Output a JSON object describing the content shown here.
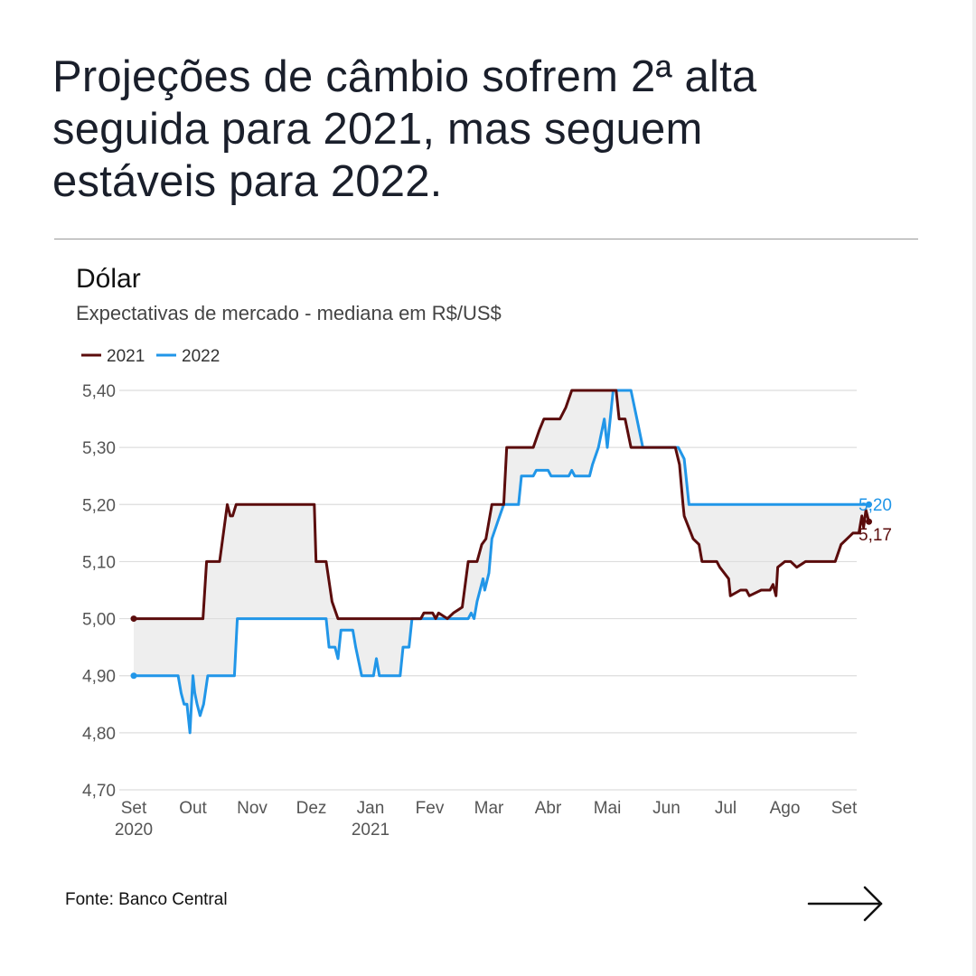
{
  "headline": {
    "line1": "Projeções de câmbio sofrem 2ª alta",
    "line2": "seguida para 2021, mas seguem",
    "line3": "estáveis para 2022."
  },
  "source": "Fonte: Banco Central",
  "nav": {
    "next_icon": "arrow-right-icon"
  },
  "colors": {
    "series_2021": "#5b0c0c",
    "series_2022": "#2196e8",
    "fill": "#eeeeee",
    "grid": "#dddddd",
    "axis_text": "#555555",
    "text": "#1a1f2b"
  },
  "chart_data": {
    "type": "line",
    "title": "Dólar",
    "subtitle": "Expectativas de mercado - mediana em R$/US$",
    "xlabel": "",
    "ylabel": "",
    "ylim": [
      4.7,
      5.4
    ],
    "xlim": [
      0,
      12
    ],
    "yticks": [
      {
        "value": 5.4,
        "label": "5,40"
      },
      {
        "value": 5.3,
        "label": "5,30"
      },
      {
        "value": 5.2,
        "label": "5,20"
      },
      {
        "value": 5.1,
        "label": "5,10"
      },
      {
        "value": 5.0,
        "label": "5,00"
      },
      {
        "value": 4.9,
        "label": "4,90"
      },
      {
        "value": 4.8,
        "label": "4,80"
      },
      {
        "value": 4.7,
        "label": "4,70"
      }
    ],
    "xticks": [
      {
        "pos": 0,
        "label": "Set",
        "sublabel": "2020"
      },
      {
        "pos": 1,
        "label": "Out",
        "sublabel": ""
      },
      {
        "pos": 2,
        "label": "Nov",
        "sublabel": ""
      },
      {
        "pos": 3,
        "label": "Dez",
        "sublabel": ""
      },
      {
        "pos": 4,
        "label": "Jan",
        "sublabel": "2021"
      },
      {
        "pos": 5,
        "label": "Fev",
        "sublabel": ""
      },
      {
        "pos": 6,
        "label": "Mar",
        "sublabel": ""
      },
      {
        "pos": 7,
        "label": "Abr",
        "sublabel": ""
      },
      {
        "pos": 8,
        "label": "Mai",
        "sublabel": ""
      },
      {
        "pos": 9,
        "label": "Jun",
        "sublabel": ""
      },
      {
        "pos": 10,
        "label": "Jul",
        "sublabel": ""
      },
      {
        "pos": 11,
        "label": "Ago",
        "sublabel": ""
      },
      {
        "pos": 12,
        "label": "Set",
        "sublabel": ""
      }
    ],
    "grid": true,
    "legend": "top-left",
    "shade_between_series": true,
    "series": [
      {
        "name": "2021",
        "color": "#5b0c0c",
        "end_label": "5,17",
        "points": [
          [
            0,
            5.0
          ],
          [
            1.17,
            5.0
          ],
          [
            1.23,
            5.1
          ],
          [
            1.45,
            5.1
          ],
          [
            1.58,
            5.2
          ],
          [
            1.63,
            5.18
          ],
          [
            1.67,
            5.18
          ],
          [
            1.73,
            5.2
          ],
          [
            3.05,
            5.2
          ],
          [
            3.08,
            5.1
          ],
          [
            3.25,
            5.1
          ],
          [
            3.35,
            5.03
          ],
          [
            3.45,
            5.0
          ],
          [
            4.85,
            5.0
          ],
          [
            4.9,
            5.01
          ],
          [
            5.05,
            5.01
          ],
          [
            5.1,
            5.0
          ],
          [
            5.15,
            5.01
          ],
          [
            5.3,
            5.0
          ],
          [
            5.4,
            5.01
          ],
          [
            5.55,
            5.02
          ],
          [
            5.65,
            5.1
          ],
          [
            5.8,
            5.1
          ],
          [
            5.88,
            5.13
          ],
          [
            5.95,
            5.14
          ],
          [
            6.05,
            5.2
          ],
          [
            6.25,
            5.2
          ],
          [
            6.3,
            5.3
          ],
          [
            6.75,
            5.3
          ],
          [
            6.85,
            5.33
          ],
          [
            6.93,
            5.35
          ],
          [
            7.2,
            5.35
          ],
          [
            7.3,
            5.37
          ],
          [
            7.4,
            5.4
          ],
          [
            8.15,
            5.4
          ],
          [
            8.2,
            5.35
          ],
          [
            8.3,
            5.35
          ],
          [
            8.4,
            5.3
          ],
          [
            9.15,
            5.3
          ],
          [
            9.22,
            5.27
          ],
          [
            9.28,
            5.2
          ],
          [
            9.3,
            5.18
          ],
          [
            9.45,
            5.14
          ],
          [
            9.55,
            5.13
          ],
          [
            9.6,
            5.1
          ],
          [
            9.85,
            5.1
          ],
          [
            9.9,
            5.09
          ],
          [
            10.05,
            5.07
          ],
          [
            10.08,
            5.04
          ],
          [
            10.25,
            5.05
          ],
          [
            10.35,
            5.05
          ],
          [
            10.4,
            5.04
          ],
          [
            10.6,
            5.05
          ],
          [
            10.75,
            5.05
          ],
          [
            10.8,
            5.06
          ],
          [
            10.85,
            5.04
          ],
          [
            10.88,
            5.09
          ],
          [
            11.0,
            5.1
          ],
          [
            11.1,
            5.1
          ],
          [
            11.2,
            5.09
          ],
          [
            11.35,
            5.1
          ],
          [
            11.85,
            5.1
          ],
          [
            11.95,
            5.13
          ],
          [
            12.05,
            5.14
          ],
          [
            12.15,
            5.15
          ],
          [
            12.25,
            5.15
          ],
          [
            12.3,
            5.18
          ],
          [
            12.33,
            5.16
          ],
          [
            12.37,
            5.19
          ],
          [
            12.42,
            5.17
          ]
        ]
      },
      {
        "name": "2022",
        "color": "#2196e8",
        "end_label": "5,20",
        "points": [
          [
            0,
            4.9
          ],
          [
            0.75,
            4.9
          ],
          [
            0.8,
            4.87
          ],
          [
            0.85,
            4.85
          ],
          [
            0.9,
            4.85
          ],
          [
            0.95,
            4.8
          ],
          [
            1.0,
            4.9
          ],
          [
            1.03,
            4.87
          ],
          [
            1.07,
            4.85
          ],
          [
            1.12,
            4.83
          ],
          [
            1.15,
            4.84
          ],
          [
            1.18,
            4.85
          ],
          [
            1.25,
            4.9
          ],
          [
            1.7,
            4.9
          ],
          [
            1.75,
            5.0
          ],
          [
            3.25,
            5.0
          ],
          [
            3.3,
            4.95
          ],
          [
            3.4,
            4.95
          ],
          [
            3.45,
            4.93
          ],
          [
            3.5,
            4.98
          ],
          [
            3.7,
            4.98
          ],
          [
            3.75,
            4.95
          ],
          [
            3.85,
            4.9
          ],
          [
            4.05,
            4.9
          ],
          [
            4.1,
            4.93
          ],
          [
            4.15,
            4.9
          ],
          [
            4.5,
            4.9
          ],
          [
            4.55,
            4.95
          ],
          [
            4.65,
            4.95
          ],
          [
            4.7,
            5.0
          ],
          [
            5.65,
            5.0
          ],
          [
            5.7,
            5.01
          ],
          [
            5.75,
            5.0
          ],
          [
            5.8,
            5.03
          ],
          [
            5.9,
            5.07
          ],
          [
            5.93,
            5.05
          ],
          [
            6.0,
            5.08
          ],
          [
            6.05,
            5.14
          ],
          [
            6.15,
            5.17
          ],
          [
            6.25,
            5.2
          ],
          [
            6.5,
            5.2
          ],
          [
            6.55,
            5.25
          ],
          [
            6.75,
            5.25
          ],
          [
            6.8,
            5.26
          ],
          [
            7.0,
            5.26
          ],
          [
            7.05,
            5.25
          ],
          [
            7.35,
            5.25
          ],
          [
            7.4,
            5.26
          ],
          [
            7.45,
            5.25
          ],
          [
            7.7,
            5.25
          ],
          [
            7.75,
            5.27
          ],
          [
            7.85,
            5.3
          ],
          [
            7.95,
            5.35
          ],
          [
            8.0,
            5.3
          ],
          [
            8.1,
            5.4
          ],
          [
            8.4,
            5.4
          ],
          [
            8.5,
            5.35
          ],
          [
            8.6,
            5.3
          ],
          [
            9.2,
            5.3
          ],
          [
            9.3,
            5.28
          ],
          [
            9.38,
            5.2
          ],
          [
            12.42,
            5.2
          ]
        ]
      }
    ]
  }
}
